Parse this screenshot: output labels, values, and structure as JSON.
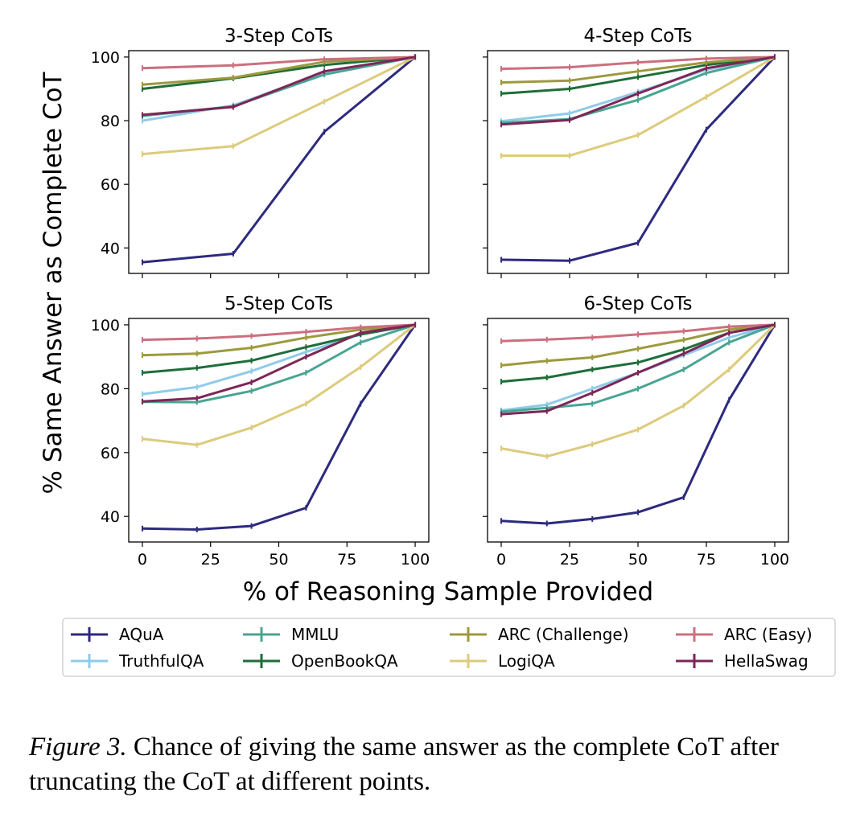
{
  "figure": {
    "ylabel": "% Same Answer as Complete CoT",
    "xlabel": "% of Reasoning Sample Provided",
    "caption_label": "Figure 3.",
    "caption_text": " Chance of giving the same answer as the complete CoT after truncating the CoT at different points."
  },
  "series_styles": [
    {
      "name": "AQuA",
      "color": "#2e2a7e"
    },
    {
      "name": "TruthfulQA",
      "color": "#8fcbe8"
    },
    {
      "name": "MMLU",
      "color": "#48a593"
    },
    {
      "name": "OpenBookQA",
      "color": "#1e6e3a"
    },
    {
      "name": "ARC (Challenge)",
      "color": "#9c9a3e"
    },
    {
      "name": "LogiQA",
      "color": "#dccb7c"
    },
    {
      "name": "ARC (Easy)",
      "color": "#cc6f7f"
    },
    {
      "name": "HellaSwag",
      "color": "#7d2657"
    }
  ],
  "legend": {
    "placement": "bottom",
    "columns": [
      [
        "AQuA",
        "TruthfulQA"
      ],
      [
        "MMLU",
        "OpenBookQA"
      ],
      [
        "ARC (Challenge)",
        "LogiQA"
      ],
      [
        "ARC (Easy)",
        "HellaSwag"
      ]
    ]
  },
  "chart_data": [
    {
      "type": "line",
      "title": "3-Step CoTs",
      "x": [
        0,
        33.3,
        66.7,
        100
      ],
      "xlim": [
        -5,
        105
      ],
      "ylim": [
        32,
        102
      ],
      "xticks": [
        0,
        25,
        50,
        75,
        100
      ],
      "yticks": [
        40,
        60,
        80,
        100
      ],
      "show_y_tick_labels": true,
      "show_x_tick_labels": false,
      "series": [
        {
          "name": "AQuA",
          "values": [
            35.5,
            38.2,
            76.5,
            100
          ]
        },
        {
          "name": "TruthfulQA",
          "values": [
            80.0,
            84.8,
            95.0,
            100
          ]
        },
        {
          "name": "MMLU",
          "values": [
            81.5,
            84.5,
            94.5,
            100
          ]
        },
        {
          "name": "OpenBookQA",
          "values": [
            90.0,
            93.3,
            97.5,
            100
          ]
        },
        {
          "name": "ARC (Challenge)",
          "values": [
            91.3,
            93.5,
            98.5,
            100
          ]
        },
        {
          "name": "LogiQA",
          "values": [
            69.5,
            72.0,
            86.0,
            100
          ]
        },
        {
          "name": "ARC (Easy)",
          "values": [
            96.5,
            97.4,
            99.3,
            100
          ]
        },
        {
          "name": "HellaSwag",
          "values": [
            81.8,
            84.3,
            95.5,
            100
          ]
        }
      ]
    },
    {
      "type": "line",
      "title": "4-Step CoTs",
      "x": [
        0,
        25,
        50,
        75,
        100
      ],
      "xlim": [
        -5,
        105
      ],
      "ylim": [
        32,
        102
      ],
      "xticks": [
        0,
        25,
        50,
        75,
        100
      ],
      "yticks": [
        40,
        60,
        80,
        100
      ],
      "show_y_tick_labels": false,
      "show_x_tick_labels": false,
      "series": [
        {
          "name": "AQuA",
          "values": [
            36.3,
            36.0,
            41.6,
            77.2,
            100
          ]
        },
        {
          "name": "TruthfulQA",
          "values": [
            79.8,
            82.3,
            89.0,
            96.0,
            100
          ]
        },
        {
          "name": "MMLU",
          "values": [
            79.3,
            80.5,
            86.5,
            95.0,
            100
          ]
        },
        {
          "name": "OpenBookQA",
          "values": [
            88.5,
            90.0,
            93.7,
            97.5,
            100
          ]
        },
        {
          "name": "ARC (Challenge)",
          "values": [
            92.0,
            92.6,
            95.5,
            98.3,
            100
          ]
        },
        {
          "name": "LogiQA",
          "values": [
            69.0,
            69.0,
            75.5,
            87.5,
            100
          ]
        },
        {
          "name": "ARC (Easy)",
          "values": [
            96.3,
            96.8,
            98.3,
            99.5,
            100
          ]
        },
        {
          "name": "HellaSwag",
          "values": [
            78.8,
            80.2,
            88.5,
            96.5,
            100
          ]
        }
      ]
    },
    {
      "type": "line",
      "title": "5-Step CoTs",
      "x": [
        0,
        20,
        40,
        60,
        80,
        100
      ],
      "xlim": [
        -5,
        105
      ],
      "ylim": [
        32,
        102
      ],
      "xticks": [
        0,
        25,
        50,
        75,
        100
      ],
      "yticks": [
        40,
        60,
        80,
        100
      ],
      "show_y_tick_labels": true,
      "show_x_tick_labels": true,
      "series": [
        {
          "name": "AQuA",
          "values": [
            36.2,
            35.9,
            37.0,
            42.7,
            75.3,
            100
          ]
        },
        {
          "name": "TruthfulQA",
          "values": [
            78.3,
            80.5,
            85.5,
            91.5,
            97.0,
            100
          ]
        },
        {
          "name": "MMLU",
          "values": [
            75.9,
            75.8,
            79.3,
            85.0,
            94.5,
            100
          ]
        },
        {
          "name": "OpenBookQA",
          "values": [
            85.0,
            86.5,
            88.8,
            93.0,
            97.0,
            100
          ]
        },
        {
          "name": "ARC (Challenge)",
          "values": [
            90.5,
            91.0,
            92.8,
            96.0,
            98.5,
            100
          ]
        },
        {
          "name": "LogiQA",
          "values": [
            64.3,
            62.4,
            67.8,
            75.3,
            86.8,
            100
          ]
        },
        {
          "name": "ARC (Easy)",
          "values": [
            95.3,
            95.7,
            96.5,
            97.8,
            99.2,
            100
          ]
        },
        {
          "name": "HellaSwag",
          "values": [
            76.0,
            77.0,
            82.0,
            90.0,
            97.5,
            100
          ]
        }
      ]
    },
    {
      "type": "line",
      "title": "6-Step CoTs",
      "x": [
        0,
        16.7,
        33.3,
        50,
        66.7,
        83.3,
        100
      ],
      "xlim": [
        -5,
        105
      ],
      "ylim": [
        32,
        102
      ],
      "xticks": [
        0,
        25,
        50,
        75,
        100
      ],
      "yticks": [
        40,
        60,
        80,
        100
      ],
      "show_y_tick_labels": false,
      "show_x_tick_labels": true,
      "series": [
        {
          "name": "AQuA",
          "values": [
            38.6,
            37.8,
            39.2,
            41.3,
            46.0,
            76.5,
            100
          ]
        },
        {
          "name": "TruthfulQA",
          "values": [
            73.2,
            75.0,
            80.0,
            85.0,
            90.5,
            96.0,
            100
          ]
        },
        {
          "name": "MMLU",
          "values": [
            72.8,
            74.0,
            75.3,
            80.0,
            86.0,
            94.5,
            100
          ]
        },
        {
          "name": "OpenBookQA",
          "values": [
            82.2,
            83.5,
            86.0,
            88.2,
            92.3,
            97.5,
            100
          ]
        },
        {
          "name": "ARC (Challenge)",
          "values": [
            87.3,
            88.7,
            89.8,
            92.5,
            95.3,
            98.5,
            100
          ]
        },
        {
          "name": "LogiQA",
          "values": [
            61.3,
            58.8,
            62.6,
            67.2,
            74.7,
            86.0,
            100
          ]
        },
        {
          "name": "ARC (Easy)",
          "values": [
            94.9,
            95.4,
            96.0,
            97.0,
            98.0,
            99.4,
            100
          ]
        },
        {
          "name": "HellaSwag",
          "values": [
            72.0,
            73.0,
            78.7,
            85.0,
            91.0,
            97.5,
            100
          ]
        }
      ]
    }
  ]
}
